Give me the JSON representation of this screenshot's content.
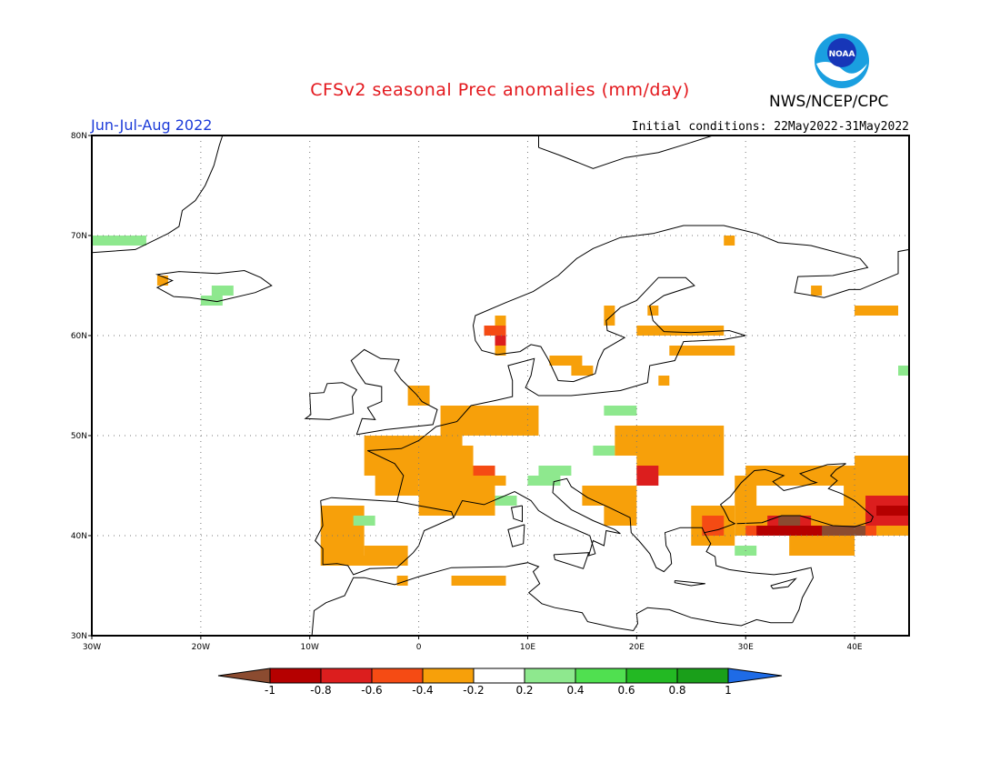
{
  "title": "CFSv2 seasonal Prec anomalies (mm/day)",
  "agency": "NWS/NCEP/CPC",
  "logo_text": "NOAA",
  "period": "Jun-Jul-Aug 2022",
  "initial_conditions": "Initial conditions: 22May2022-31May2022",
  "map": {
    "lon_range": [
      -30,
      45
    ],
    "lat_range": [
      30,
      80
    ],
    "lat_labels": [
      "30N",
      "40N",
      "50N",
      "60N",
      "70N",
      "80N"
    ],
    "lon_labels": [
      "30W",
      "20W",
      "10W",
      "0",
      "10E",
      "20E",
      "30E",
      "40E"
    ],
    "grid": "dotted",
    "cell_size_deg": 1.0
  },
  "colorbar": {
    "ticks": [
      "-1",
      "-0.8",
      "-0.6",
      "-0.4",
      "-0.2",
      "0.2",
      "0.4",
      "0.6",
      "0.8",
      "1"
    ],
    "colors": {
      "below_min": "#8b4b30",
      "b1": "#b50000",
      "b2": "#dc1e1e",
      "b3": "#f54b14",
      "b4": "#f7a00a",
      "b5": "#ffffff",
      "b6": "#8ee88e",
      "b7": "#50e050",
      "b8": "#23b923",
      "b9": "#1a9f1a",
      "above_max": "#1e6be6"
    }
  },
  "anomalies": [
    {
      "level": "b4",
      "lon": -9,
      "lat": 38,
      "w": 4,
      "h": 5
    },
    {
      "level": "b4",
      "lon": -9,
      "lat": 37,
      "w": 6,
      "h": 1
    },
    {
      "level": "b4",
      "lon": -5,
      "lat": 37,
      "w": 4,
      "h": 2
    },
    {
      "level": "b4",
      "lon": -5,
      "lat": 46,
      "w": 9,
      "h": 4
    },
    {
      "level": "b4",
      "lon": -4,
      "lat": 44,
      "w": 4,
      "h": 2
    },
    {
      "level": "b4",
      "lon": -1,
      "lat": 47,
      "w": 6,
      "h": 2
    },
    {
      "level": "b4",
      "lon": 0,
      "lat": 42,
      "w": 7,
      "h": 5
    },
    {
      "level": "b4",
      "lon": 2,
      "lat": 50,
      "w": 5,
      "h": 3
    },
    {
      "level": "b4",
      "lon": 6,
      "lat": 50,
      "w": 5,
      "h": 3
    },
    {
      "level": "b4",
      "lon": -1,
      "lat": 53,
      "w": 2,
      "h": 2
    },
    {
      "level": "b3",
      "lon": 5,
      "lat": 46,
      "w": 2,
      "h": 1
    },
    {
      "level": "b4",
      "lon": 5,
      "lat": 45,
      "w": 3,
      "h": 1
    },
    {
      "level": "b6",
      "lon": 7,
      "lat": 43,
      "w": 2,
      "h": 1
    },
    {
      "level": "b6",
      "lon": -6,
      "lat": 41,
      "w": 2,
      "h": 1
    },
    {
      "level": "b6",
      "lon": 10,
      "lat": 45,
      "w": 3,
      "h": 1
    },
    {
      "level": "b6",
      "lon": 11,
      "lat": 46,
      "w": 3,
      "h": 1
    },
    {
      "level": "b6",
      "lon": 17,
      "lat": 52,
      "w": 3,
      "h": 1
    },
    {
      "level": "b6",
      "lon": 16,
      "lat": 48,
      "w": 2,
      "h": 1
    },
    {
      "level": "b4",
      "lon": 3,
      "lat": 35,
      "w": 5,
      "h": 1
    },
    {
      "level": "b4",
      "lon": -2,
      "lat": 35,
      "w": 1,
      "h": 1
    },
    {
      "level": "b4",
      "lon": 7,
      "lat": 58,
      "w": 1,
      "h": 4
    },
    {
      "level": "b3",
      "lon": 6,
      "lat": 60,
      "w": 2,
      "h": 1
    },
    {
      "level": "b2",
      "lon": 7,
      "lat": 59,
      "w": 1,
      "h": 1
    },
    {
      "level": "b4",
      "lon": 12,
      "lat": 57,
      "w": 3,
      "h": 1
    },
    {
      "level": "b4",
      "lon": 14,
      "lat": 56,
      "w": 2,
      "h": 1
    },
    {
      "level": "b4",
      "lon": 17,
      "lat": 61,
      "w": 1,
      "h": 2
    },
    {
      "level": "b4",
      "lon": 20,
      "lat": 60,
      "w": 8,
      "h": 1
    },
    {
      "level": "b4",
      "lon": 23,
      "lat": 58,
      "w": 6,
      "h": 1
    },
    {
      "level": "b4",
      "lon": 21,
      "lat": 62,
      "w": 1,
      "h": 1
    },
    {
      "level": "b4",
      "lon": 36,
      "lat": 64,
      "w": 1,
      "h": 1
    },
    {
      "level": "b4",
      "lon": 40,
      "lat": 62,
      "w": 4,
      "h": 1
    },
    {
      "level": "b4",
      "lon": 28,
      "lat": 69,
      "w": 1,
      "h": 1
    },
    {
      "level": "b4",
      "lon": 22,
      "lat": 55,
      "w": 1,
      "h": 1
    },
    {
      "level": "b4",
      "lon": 18,
      "lat": 48,
      "w": 10,
      "h": 3
    },
    {
      "level": "b4",
      "lon": 20,
      "lat": 46,
      "w": 8,
      "h": 2
    },
    {
      "level": "b4",
      "lon": 15,
      "lat": 43,
      "w": 5,
      "h": 2
    },
    {
      "level": "b4",
      "lon": 17,
      "lat": 41,
      "w": 3,
      "h": 2
    },
    {
      "level": "b2",
      "lon": 20,
      "lat": 45,
      "w": 2,
      "h": 2
    },
    {
      "level": "b4",
      "lon": 25,
      "lat": 39,
      "w": 4,
      "h": 4
    },
    {
      "level": "b3",
      "lon": 26,
      "lat": 40,
      "w": 2,
      "h": 2
    },
    {
      "level": "b4",
      "lon": 29,
      "lat": 43,
      "w": 2,
      "h": 3
    },
    {
      "level": "b4",
      "lon": 30,
      "lat": 45,
      "w": 15,
      "h": 2
    },
    {
      "level": "b4",
      "lon": 40,
      "lat": 47,
      "w": 5,
      "h": 1
    },
    {
      "level": "b4",
      "lon": 39,
      "lat": 43,
      "w": 6,
      "h": 3
    },
    {
      "level": "b4",
      "lon": 29,
      "lat": 40,
      "w": 16,
      "h": 3
    },
    {
      "level": "b3",
      "lon": 30,
      "lat": 40,
      "w": 12,
      "h": 1
    },
    {
      "level": "b1",
      "lon": 31,
      "lat": 40,
      "w": 10,
      "h": 1
    },
    {
      "level": "b2",
      "lon": 32,
      "lat": 41,
      "w": 4,
      "h": 1
    },
    {
      "level": "below_min",
      "lon": 33,
      "lat": 41,
      "w": 2,
      "h": 1
    },
    {
      "level": "below_min",
      "lon": 37,
      "lat": 40,
      "w": 4,
      "h": 1
    },
    {
      "level": "b2",
      "lon": 41,
      "lat": 41,
      "w": 4,
      "h": 3
    },
    {
      "level": "b1",
      "lon": 42,
      "lat": 42,
      "w": 3,
      "h": 1
    },
    {
      "level": "b4",
      "lon": 34,
      "lat": 38,
      "w": 6,
      "h": 2
    },
    {
      "level": "b6",
      "lon": 29,
      "lat": 38,
      "w": 2,
      "h": 1
    },
    {
      "level": "b6",
      "lon": 44,
      "lat": 56,
      "w": 1,
      "h": 1
    },
    {
      "level": "b6",
      "lon": -30,
      "lat": 69,
      "w": 5,
      "h": 1
    },
    {
      "level": "b6",
      "lon": -19,
      "lat": 64,
      "w": 2,
      "h": 1
    },
    {
      "level": "b6",
      "lon": -20,
      "lat": 63,
      "w": 2,
      "h": 1
    },
    {
      "level": "b4",
      "lon": -24,
      "lat": 65,
      "w": 1,
      "h": 1
    }
  ]
}
